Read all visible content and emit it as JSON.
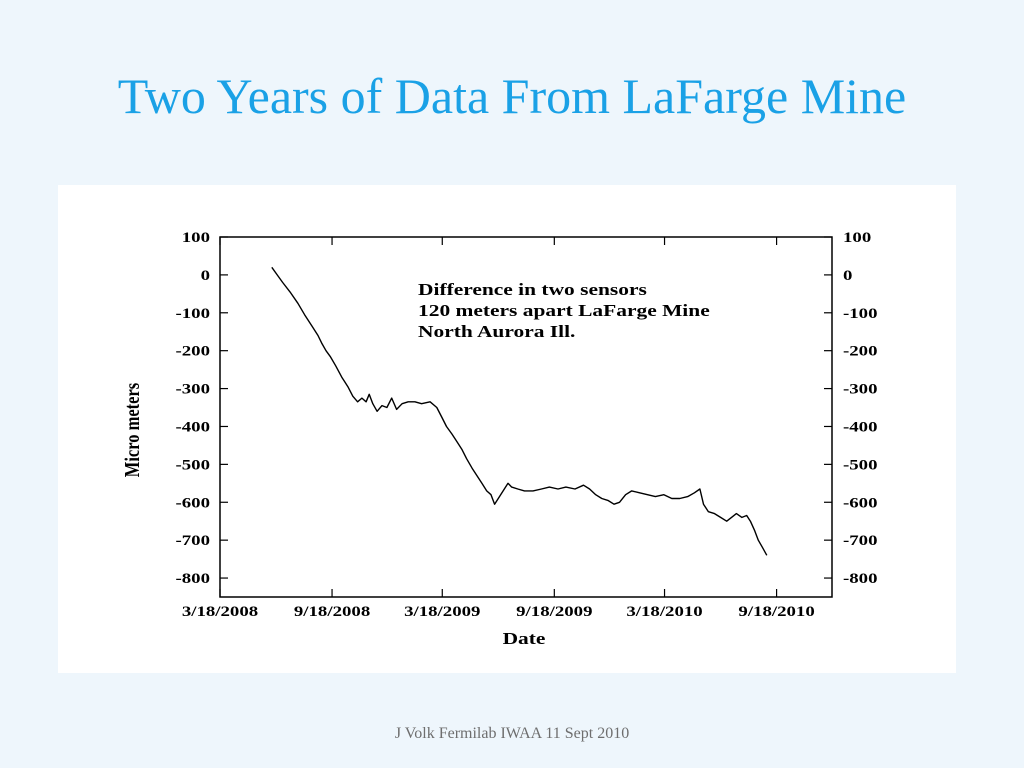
{
  "slide": {
    "title": "Two Years of Data From LaFarge Mine",
    "footer": "J Volk Fermilab IWAA 11 Sept 2010"
  },
  "theme": {
    "title_color": "#1aa1e6"
  },
  "chart_data": {
    "type": "line",
    "xlabel": "Date",
    "ylabel": "Micro meters",
    "annotation": [
      "Difference in two sensors",
      "120 meters apart LaFarge Mine",
      "North Aurora Ill."
    ],
    "xticks": [
      "3/18/2008",
      "9/18/2008",
      "3/18/2009",
      "9/18/2009",
      "3/18/2010",
      "9/18/2010"
    ],
    "yticks": [
      100,
      0,
      -100,
      -200,
      -300,
      -400,
      -500,
      -600,
      -700,
      -800
    ],
    "xlim": [
      "3/18/2008",
      "12/18/2010"
    ],
    "ylim": [
      -850,
      100
    ],
    "grid": false,
    "x": [
      "6/11/2008",
      "6/20/2008",
      "6/29/2008",
      "7/11/2008",
      "7/24/2008",
      "8/4/2008",
      "8/16/2008",
      "8/26/2008",
      "9/1/2008",
      "9/8/2008",
      "9/15/2008",
      "9/24/2008",
      "10/4/2008",
      "10/14/2008",
      "10/22/2008",
      "10/30/2008",
      "11/6/2008",
      "11/13/2008",
      "11/18/2008",
      "11/24/2008",
      "12/1/2008",
      "12/9/2008",
      "12/17/2008",
      "12/25/2008",
      "1/2/2009",
      "1/11/2009",
      "1/21/2009",
      "2/1/2009",
      "2/12/2009",
      "2/26/2009",
      "3/9/2009",
      "3/17/2009",
      "3/25/2009",
      "4/3/2009",
      "4/11/2009",
      "4/19/2009",
      "4/27/2009",
      "5/6/2009",
      "5/14/2009",
      "5/22/2009",
      "5/30/2009",
      "6/6/2009",
      "6/12/2009",
      "7/4/2009",
      "7/10/2009",
      "7/20/2009",
      "7/31/2009",
      "8/14/2009",
      "8/28/2009",
      "9/10/2009",
      "9/24/2009",
      "10/7/2009",
      "10/22/2009",
      "11/5/2009",
      "11/15/2009",
      "11/25/2009",
      "12/5/2009",
      "12/15/2009",
      "12/25/2009",
      "1/3/2010",
      "1/13/2010",
      "1/23/2010",
      "2/5/2010",
      "2/18/2010",
      "3/3/2010",
      "3/17/2010",
      "3/30/2010",
      "4/12/2010",
      "4/25/2010",
      "5/6/2010",
      "5/15/2010",
      "5/21/2010",
      "5/29/2010",
      "6/8/2010",
      "6/18/2010",
      "6/28/2010",
      "7/6/2010",
      "7/14/2010",
      "7/23/2010",
      "7/31/2010",
      "8/6/2010",
      "8/13/2010",
      "8/19/2010",
      "8/26/2010",
      "9/2/2010"
    ],
    "y": [
      20,
      0,
      -20,
      -45,
      -75,
      -105,
      -135,
      -160,
      -180,
      -200,
      -215,
      -240,
      -270,
      -295,
      -320,
      -335,
      -325,
      -335,
      -315,
      -340,
      -360,
      -345,
      -350,
      -325,
      -355,
      -340,
      -335,
      -335,
      -340,
      -335,
      -350,
      -375,
      -400,
      -420,
      -440,
      -460,
      -485,
      -510,
      -530,
      -550,
      -570,
      -580,
      -605,
      -550,
      -560,
      -565,
      -570,
      -570,
      -565,
      -560,
      -565,
      -560,
      -565,
      -555,
      -565,
      -580,
      -590,
      -595,
      -605,
      -600,
      -580,
      -570,
      -575,
      -580,
      -585,
      -580,
      -590,
      -590,
      -585,
      -575,
      -565,
      -605,
      -625,
      -630,
      -640,
      -650,
      -640,
      -630,
      -640,
      -635,
      -650,
      -675,
      -700,
      -720,
      -740
    ]
  }
}
